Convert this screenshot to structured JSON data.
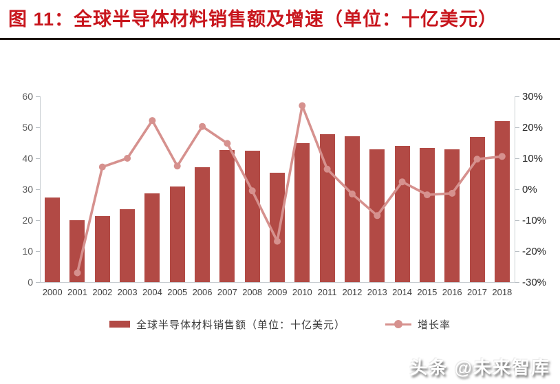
{
  "title": "图 11：全球半导体材料销售额及增速（单位：十亿美元）",
  "watermark": "头条 @未来智库",
  "legend": {
    "bars_label": "全球半导体材料销售额（单位：十亿美元）",
    "line_label": "增长率"
  },
  "colors": {
    "bar": "#b24a45",
    "line": "#d6918e",
    "title": "#c8161d",
    "separator": "#1b1410",
    "axis": "#c9ced2"
  },
  "chart_data": {
    "type": "bar+line",
    "title": "全球半导体材料销售额及增速（单位：十亿美元）",
    "categories": [
      "2000",
      "2001",
      "2002",
      "2003",
      "2004",
      "2005",
      "2006",
      "2007",
      "2008",
      "2009",
      "2010",
      "2011",
      "2012",
      "2013",
      "2014",
      "2015",
      "2016",
      "2017",
      "2018"
    ],
    "series": [
      {
        "name": "全球半导体材料销售额（单位：十亿美元）",
        "type": "bar",
        "axis": "left",
        "values": [
          27.3,
          19.9,
          21.4,
          23.6,
          28.7,
          30.8,
          37.1,
          42.7,
          42.5,
          35.4,
          44.9,
          47.8,
          47.1,
          43.0,
          44.1,
          43.3,
          42.8,
          46.9,
          51.9
        ]
      },
      {
        "name": "增长率",
        "type": "line",
        "axis": "right",
        "values": [
          null,
          -27.0,
          7.2,
          10.0,
          22.2,
          7.5,
          20.3,
          14.8,
          -0.5,
          -16.8,
          27.0,
          6.5,
          -1.5,
          -8.5,
          2.4,
          -1.8,
          -1.3,
          9.7,
          10.6
        ]
      }
    ],
    "left_axis": {
      "ticks": [
        "0",
        "10",
        "20",
        "30",
        "40",
        "50",
        "60"
      ],
      "range": [
        0,
        60
      ]
    },
    "right_axis": {
      "ticks": [
        "30%",
        "20%",
        "10%",
        "0%",
        "-10%",
        "-20%",
        "-30%"
      ],
      "range": [
        -30,
        30
      ]
    },
    "legend_position": "bottom",
    "grid": false
  }
}
